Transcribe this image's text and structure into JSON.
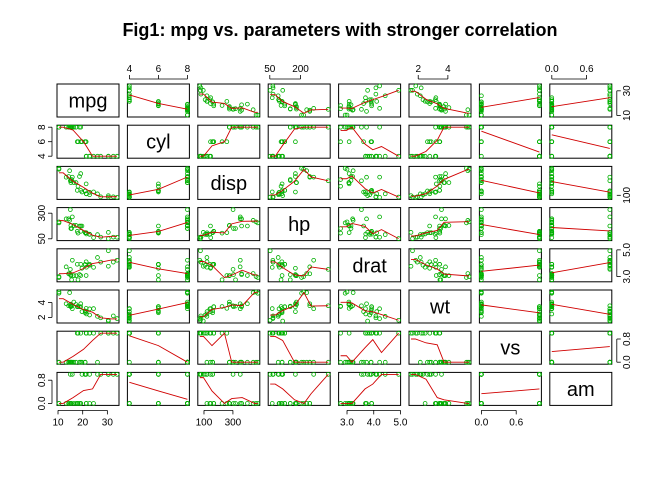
{
  "chart_data": {
    "type": "scatter-matrix",
    "title": "Fig1: mpg vs. parameters with stronger correlation",
    "variables": [
      "mpg",
      "cyl",
      "disp",
      "hp",
      "drat",
      "wt",
      "vs",
      "am"
    ],
    "ranges": {
      "mpg": [
        10.4,
        33.9
      ],
      "cyl": [
        4,
        8
      ],
      "disp": [
        71.1,
        472
      ],
      "hp": [
        52,
        335
      ],
      "drat": [
        2.76,
        4.93
      ],
      "wt": [
        1.513,
        5.424
      ],
      "vs": [
        0,
        1
      ],
      "am": [
        0,
        1
      ]
    },
    "axis_ticks": {
      "top": [
        {
          "var": "cyl",
          "ticks": [
            4,
            6,
            8
          ],
          "labels": [
            "4",
            "6",
            "8"
          ]
        },
        {
          "var": "hp",
          "ticks": [
            50,
            200
          ],
          "labels": [
            "50",
            "200"
          ]
        },
        {
          "var": "wt",
          "ticks": [
            2,
            4
          ],
          "labels": [
            "2",
            "4"
          ]
        },
        {
          "var": "am",
          "ticks": [
            0.0,
            0.6
          ],
          "labels": [
            "0.0",
            "0.6"
          ]
        }
      ],
      "bottom": [
        {
          "var": "mpg",
          "ticks": [
            10,
            20,
            30
          ],
          "labels": [
            "10",
            "20",
            "30"
          ]
        },
        {
          "var": "disp",
          "ticks": [
            100,
            300
          ],
          "labels": [
            "100",
            "300"
          ]
        },
        {
          "var": "drat",
          "ticks": [
            3.0,
            4.0,
            5.0
          ],
          "labels": [
            "3.0",
            "4.0",
            "5.0"
          ]
        },
        {
          "var": "vs",
          "ticks": [
            0.0,
            0.6
          ],
          "labels": [
            "0.0",
            "0.6"
          ]
        }
      ],
      "left": [
        {
          "var": "cyl",
          "ticks": [
            4,
            6,
            8
          ],
          "labels": [
            "4",
            "6",
            "8"
          ]
        },
        {
          "var": "hp",
          "ticks": [
            50,
            300
          ],
          "labels": [
            "50",
            "300"
          ]
        },
        {
          "var": "wt",
          "ticks": [
            2,
            4
          ],
          "labels": [
            "2",
            "4"
          ]
        },
        {
          "var": "am",
          "ticks": [
            0.0,
            0.8
          ],
          "labels": [
            "0.0",
            "0.8"
          ]
        }
      ],
      "right": [
        {
          "var": "mpg",
          "ticks": [
            10,
            30
          ],
          "labels": [
            "10",
            "30"
          ]
        },
        {
          "var": "disp",
          "ticks": [
            100
          ],
          "labels": [
            "100"
          ]
        },
        {
          "var": "drat",
          "ticks": [
            3.0,
            5.0
          ],
          "labels": [
            "3.0",
            "5.0"
          ]
        },
        {
          "var": "vs",
          "ticks": [
            0.0,
            0.8
          ],
          "labels": [
            "0.0",
            "0.8"
          ]
        }
      ]
    },
    "data": {
      "mpg": [
        21,
        21,
        22.8,
        21.4,
        18.7,
        18.1,
        14.3,
        24.4,
        22.8,
        19.2,
        17.8,
        16.4,
        17.3,
        15.2,
        10.4,
        10.4,
        14.7,
        32.4,
        30.4,
        33.9,
        21.5,
        15.5,
        15.2,
        13.3,
        19.2,
        27.3,
        26,
        30.4,
        15.8,
        19.7,
        15,
        21.4
      ],
      "cyl": [
        6,
        6,
        4,
        6,
        8,
        6,
        8,
        4,
        4,
        6,
        6,
        8,
        8,
        8,
        8,
        8,
        8,
        4,
        4,
        4,
        4,
        8,
        8,
        8,
        8,
        4,
        4,
        4,
        8,
        6,
        8,
        4
      ],
      "disp": [
        160,
        160,
        108,
        258,
        360,
        225,
        360,
        146.7,
        140.8,
        167.6,
        167.6,
        275.8,
        275.8,
        275.8,
        472,
        460,
        440,
        78.7,
        75.7,
        71.1,
        120.1,
        318,
        304,
        350,
        400,
        79,
        120.3,
        95.1,
        351,
        145,
        301,
        121
      ],
      "hp": [
        110,
        110,
        93,
        110,
        175,
        105,
        245,
        62,
        95,
        123,
        123,
        180,
        180,
        180,
        205,
        215,
        230,
        66,
        52,
        65,
        97,
        150,
        150,
        245,
        175,
        66,
        91,
        113,
        264,
        175,
        335,
        109
      ],
      "drat": [
        3.9,
        3.9,
        3.85,
        3.08,
        3.15,
        2.76,
        3.21,
        3.69,
        3.92,
        3.92,
        3.92,
        3.07,
        3.07,
        3.07,
        2.93,
        3,
        3.23,
        4.08,
        4.93,
        4.22,
        3.7,
        2.76,
        3.15,
        3.73,
        3.08,
        4.08,
        4.43,
        3.77,
        4.22,
        3.62,
        3.54,
        4.11
      ],
      "wt": [
        2.62,
        2.875,
        2.32,
        3.215,
        3.44,
        3.46,
        3.57,
        3.19,
        3.15,
        3.44,
        3.44,
        4.07,
        3.73,
        3.78,
        5.25,
        5.424,
        5.345,
        2.2,
        1.615,
        1.835,
        2.465,
        3.52,
        3.435,
        3.84,
        3.845,
        1.935,
        2.14,
        1.513,
        3.17,
        2.77,
        3.57,
        2.78
      ],
      "vs": [
        0,
        0,
        1,
        1,
        0,
        1,
        0,
        1,
        1,
        1,
        1,
        0,
        0,
        0,
        0,
        0,
        0,
        1,
        1,
        1,
        1,
        0,
        0,
        0,
        0,
        1,
        0,
        1,
        0,
        0,
        0,
        1
      ],
      "am": [
        1,
        1,
        1,
        0,
        0,
        0,
        0,
        0,
        0,
        0,
        0,
        0,
        0,
        0,
        0,
        0,
        0,
        1,
        1,
        1,
        0,
        0,
        0,
        0,
        0,
        1,
        1,
        1,
        1,
        1,
        1,
        1
      ]
    },
    "point_color": "#00b000",
    "smooth_color": "#d00000",
    "panel_border_color": "#000000"
  }
}
